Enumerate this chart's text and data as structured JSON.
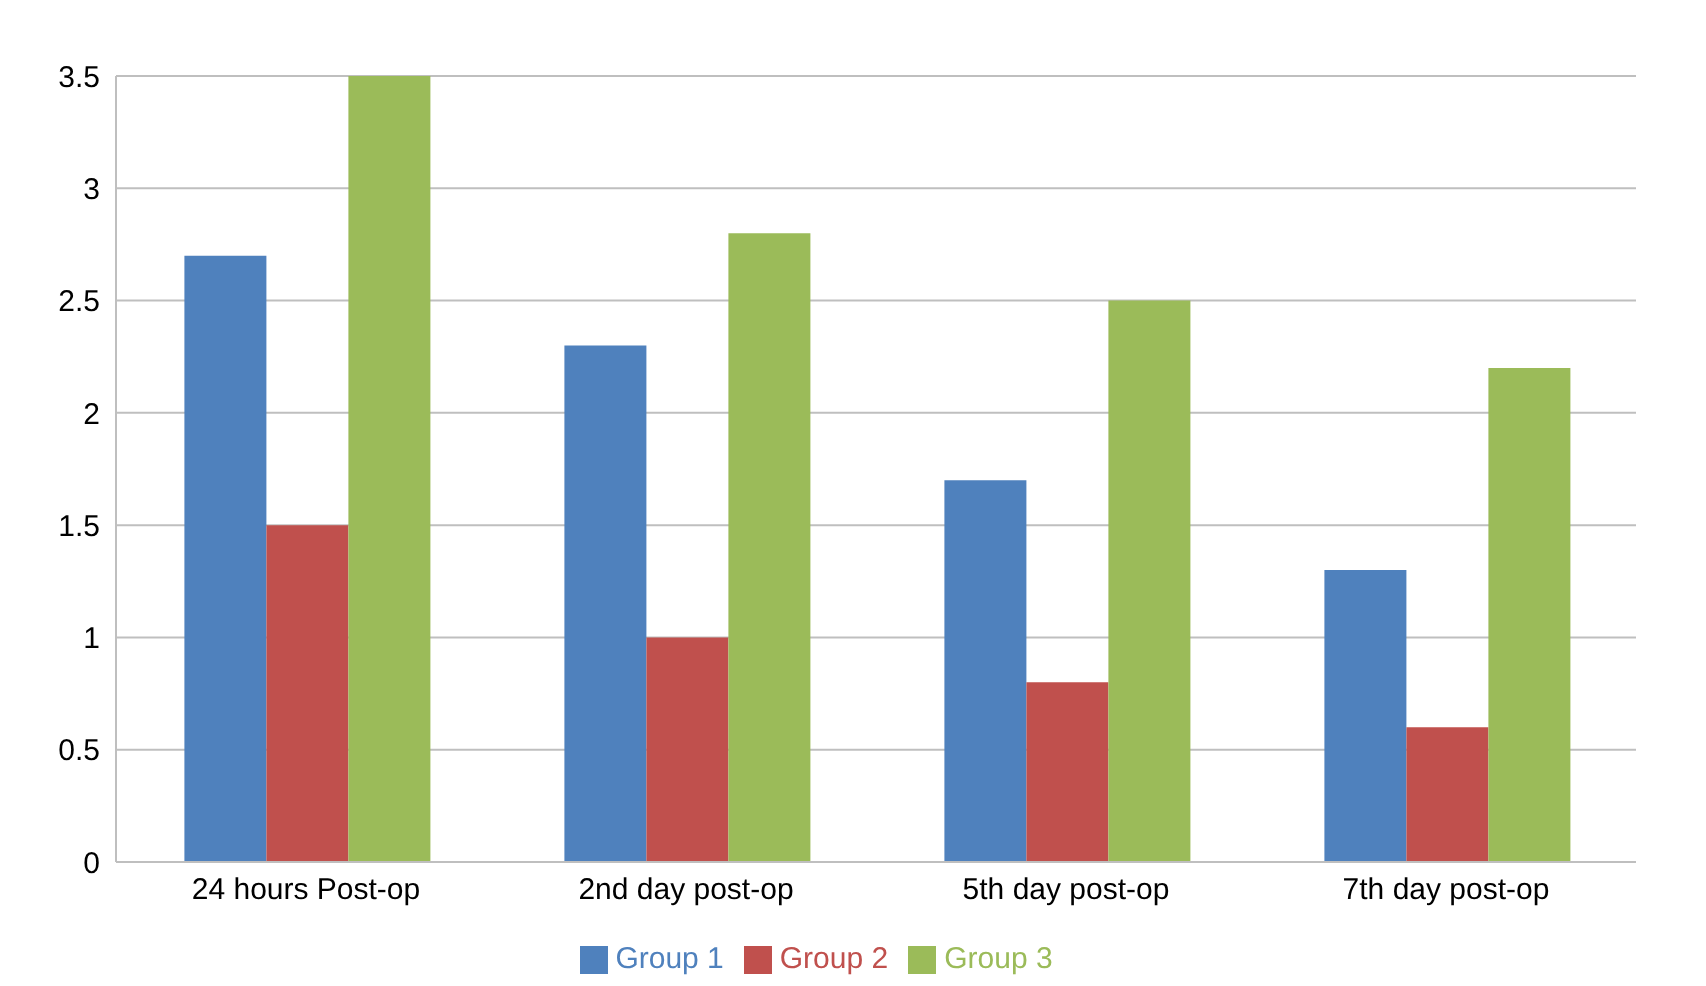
{
  "chart_data": {
    "type": "bar",
    "categories": [
      "24 hours Post-op",
      "2nd day post-op",
      "5th day post-op",
      "7th day post-op"
    ],
    "series": [
      {
        "name": "Group 1",
        "color": "#4f81bd",
        "values": [
          2.7,
          2.3,
          1.7,
          1.3
        ]
      },
      {
        "name": "Group 2",
        "color": "#c0504d",
        "values": [
          1.5,
          1.0,
          0.8,
          0.6
        ]
      },
      {
        "name": "Group 3",
        "color": "#9bbb59",
        "values": [
          3.5,
          2.8,
          2.5,
          2.2
        ]
      }
    ],
    "ylim": [
      0,
      3.5
    ],
    "yticks": [
      0,
      0.5,
      1,
      1.5,
      2,
      2.5,
      3,
      3.5
    ],
    "grid": "y",
    "legend": "bottom"
  }
}
